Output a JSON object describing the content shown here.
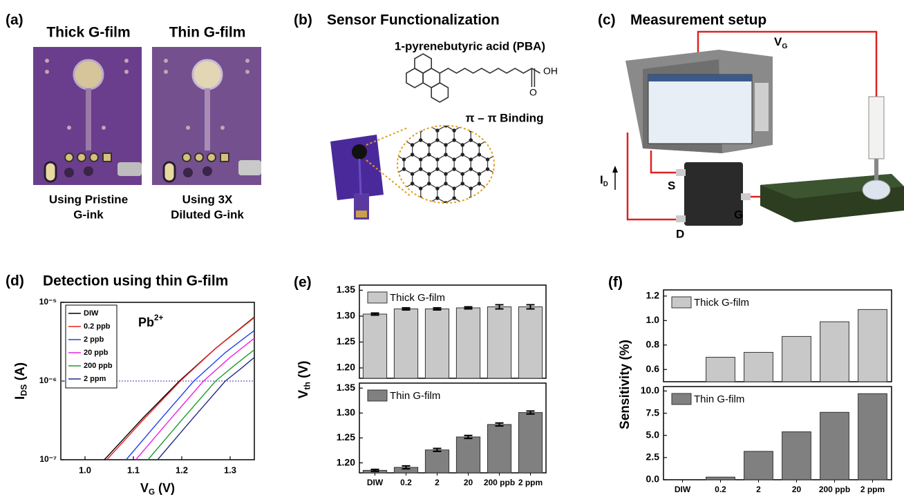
{
  "panels": {
    "a": {
      "label": "(a)",
      "headings": [
        "Thick G-film",
        "Thin G-film"
      ],
      "captions": [
        [
          "Using Pristine",
          "G-ink"
        ],
        [
          "Using 3X",
          "Diluted G-ink"
        ]
      ]
    },
    "b": {
      "label": "(b)",
      "title": "Sensor Functionalization",
      "molecule": "1-pyrenebutyric acid (PBA)",
      "hydroxyl": "OH",
      "oxygen": "O",
      "binding": "π – π Binding"
    },
    "c": {
      "label": "(c)",
      "title": "Measurement setup",
      "gate_voltage": {
        "main": "V",
        "sub": "G"
      },
      "drain_current": {
        "main": "I",
        "sub": "D"
      },
      "source": "S",
      "gate": "G",
      "drain": "D"
    },
    "d": {
      "label": "(d)"
    },
    "e": {
      "label": "(e)"
    },
    "f": {
      "label": "(f)"
    }
  },
  "chart_data": [
    {
      "type": "line",
      "title": "Detection using thin G-film",
      "xlabel": {
        "main": "V",
        "sub": "G",
        "rest": " (V)"
      },
      "ylabel": {
        "main": "I",
        "sub": "DS",
        "rest": " (A)"
      },
      "annotation": {
        "main": "Pb",
        "sup": "2+"
      },
      "log_y": true,
      "xlim": [
        0.95,
        1.35
      ],
      "xticks": [
        {
          "value": 1,
          "label": "1.0"
        },
        1.1,
        1.2,
        1.3
      ],
      "ylim": [
        1e-07,
        1e-05
      ],
      "yticks": [
        {
          "value": 1e-07,
          "label": "10⁻⁷"
        },
        {
          "value": 1e-06,
          "label": "10⁻⁶"
        },
        {
          "value": 1e-05,
          "label": "10⁻⁵"
        }
      ],
      "reference_line": 1e-06,
      "series": [
        {
          "name": "DIW",
          "color": "#000000",
          "x": [
            1.04,
            1.12,
            1.195,
            1.27,
            1.35
          ],
          "values": [
            1e-07,
            3.4e-07,
            1e-06,
            2.6e-06,
            6.5e-06
          ]
        },
        {
          "name": "0.2 ppb",
          "color": "#e8201c",
          "x": [
            1.045,
            1.12,
            1.197,
            1.27,
            1.35
          ],
          "values": [
            1e-07,
            3.2e-07,
            1e-06,
            2.6e-06,
            6.4e-06
          ]
        },
        {
          "name": "2 ppb",
          "color": "#1f3ff0",
          "x": [
            1.085,
            1.155,
            1.225,
            1.29,
            1.35
          ],
          "values": [
            1e-07,
            3.2e-07,
            1e-06,
            2.3e-06,
            4.4e-06
          ]
        },
        {
          "name": "20 ppb",
          "color": "#e624e6",
          "x": [
            1.105,
            1.175,
            1.245,
            1.3,
            1.35
          ],
          "values": [
            1e-07,
            3.2e-07,
            1e-06,
            2e-06,
            3.5e-06
          ]
        },
        {
          "name": "200 ppb",
          "color": "#1e9a2e",
          "x": [
            1.13,
            1.2,
            1.27,
            1.31,
            1.35
          ],
          "values": [
            1e-07,
            3.2e-07,
            1e-06,
            1.6e-06,
            2.5e-06
          ]
        },
        {
          "name": "2 ppm",
          "color": "#202a8c",
          "x": [
            1.15,
            1.22,
            1.29,
            1.32,
            1.35
          ],
          "values": [
            1e-07,
            3.2e-07,
            1e-06,
            1.4e-06,
            2e-06
          ]
        }
      ]
    },
    {
      "type": "bar",
      "ylabel": {
        "main": "V",
        "sub": "th",
        "rest": " (V)"
      },
      "ylim": [
        1.18,
        1.36
      ],
      "yticks": [
        {
          "value": 1.2,
          "label": "1.20"
        },
        1.25,
        {
          "value": 1.3,
          "label": "1.30"
        },
        1.35
      ],
      "series": [
        {
          "name": "Thick G-film",
          "color": "#c8c8c8",
          "values": [
            1.304,
            1.314,
            1.314,
            1.316,
            1.318,
            1.318
          ],
          "errors": [
            0.002,
            0.002,
            0.002,
            0.002,
            0.004,
            0.004
          ]
        }
      ]
    },
    {
      "type": "bar",
      "categories": [
        "DIW",
        "0.2",
        "2",
        "20",
        "200 ppb",
        "2 ppm"
      ],
      "ylim": [
        1.18,
        1.36
      ],
      "yticks": [
        {
          "value": 1.2,
          "label": "1.20"
        },
        1.25,
        {
          "value": 1.3,
          "label": "1.30"
        },
        1.35
      ],
      "series": [
        {
          "name": "Thin G-film",
          "color": "#808080",
          "values": [
            1.185,
            1.191,
            1.226,
            1.252,
            1.277,
            1.301
          ],
          "errors": [
            0.002,
            0.003,
            0.003,
            0.003,
            0.003,
            0.003
          ]
        }
      ]
    },
    {
      "type": "bar",
      "ylabel": "Sensitivity (%)",
      "ylim": [
        0.5,
        1.25
      ],
      "yticks": [
        0.6,
        0.8,
        {
          "value": 1,
          "label": "1.0"
        },
        1.2
      ],
      "series": [
        {
          "name": "Thick G-film",
          "color": "#c8c8c8",
          "values": [
            null,
            0.7,
            0.74,
            0.87,
            0.99,
            1.09
          ]
        }
      ]
    },
    {
      "type": "bar",
      "categories": [
        "DIW",
        "0.2",
        "2",
        "20",
        "200 ppb",
        "2 ppm"
      ],
      "ylim": [
        0,
        10.5
      ],
      "yticks": [
        {
          "value": 0,
          "label": "0.0"
        },
        2.5,
        {
          "value": 5,
          "label": "5.0"
        },
        7.5,
        {
          "value": 10,
          "label": "10.0"
        }
      ],
      "series": [
        {
          "name": "Thin G-film",
          "color": "#808080",
          "values": [
            null,
            0.3,
            3.2,
            5.4,
            7.6,
            9.7
          ]
        }
      ]
    }
  ]
}
